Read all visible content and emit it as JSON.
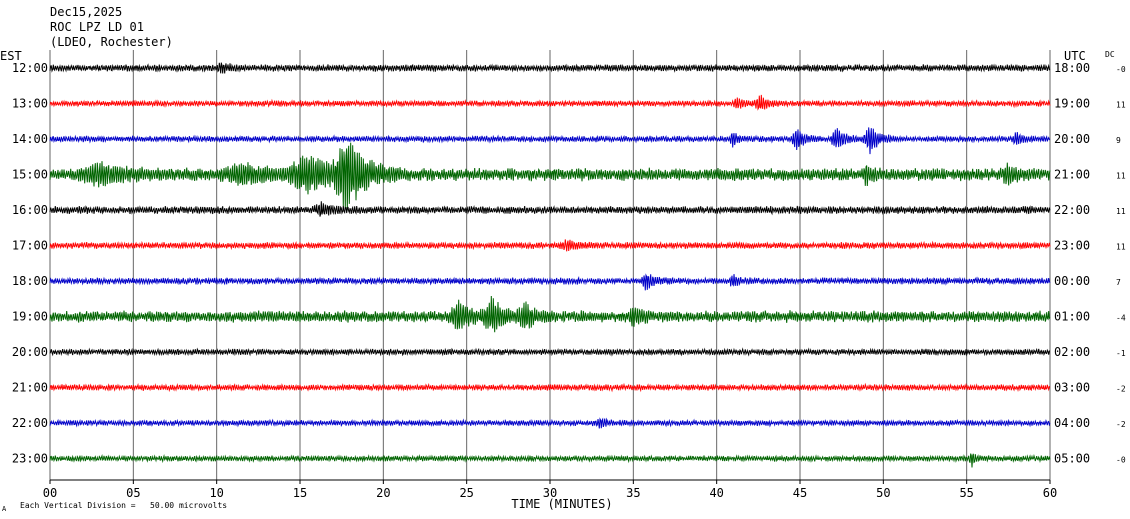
{
  "header": {
    "date": "Dec15,2025",
    "station": "ROC LPZ LD 01",
    "network": "(LDEO, Rochester)"
  },
  "left_tz": "EST",
  "right_tz": "UTC",
  "dc_label": "DC",
  "footer": {
    "xlabel": "TIME (MINUTES)",
    "scale_note": "Each Vertical Division =   50.00 microvolts",
    "corner_mark": "A"
  },
  "chart_data": {
    "type": "line",
    "title": "ROC LPZ LD 01",
    "xlabel": "TIME (MINUTES)",
    "ylabel": "",
    "xlim": [
      0,
      60
    ],
    "x_ticks": [
      "00",
      "05",
      "10",
      "15",
      "20",
      "25",
      "30",
      "35",
      "40",
      "45",
      "50",
      "55",
      "60"
    ],
    "grid": true,
    "trace_colors": [
      "#000000",
      "#ff0000",
      "#0000c8",
      "#006400"
    ],
    "rows": [
      {
        "est": "12:00",
        "utc": "18:00",
        "dc": "-0",
        "color": "#000000",
        "noise": 3.0,
        "events": [
          {
            "t": 10.3,
            "amp": 4,
            "w": 0.4
          }
        ]
      },
      {
        "est": "13:00",
        "utc": "19:00",
        "dc": "11",
        "color": "#ff0000",
        "noise": 2.5,
        "events": [
          {
            "t": 41.2,
            "amp": 5,
            "w": 0.3
          },
          {
            "t": 42.6,
            "amp": 7,
            "w": 0.4
          }
        ]
      },
      {
        "est": "14:00",
        "utc": "20:00",
        "dc": "9",
        "color": "#0000c8",
        "noise": 2.6,
        "events": [
          {
            "t": 41.0,
            "amp": 7,
            "w": 0.25
          },
          {
            "t": 44.8,
            "amp": 10,
            "w": 0.35
          },
          {
            "t": 47.2,
            "amp": 10,
            "w": 0.4
          },
          {
            "t": 49.2,
            "amp": 13,
            "w": 0.45
          },
          {
            "t": 58.0,
            "amp": 5,
            "w": 0.3
          }
        ]
      },
      {
        "est": "15:00",
        "utc": "21:00",
        "dc": "11",
        "color": "#006400",
        "noise": 5.5,
        "events": [
          {
            "t": 17.8,
            "amp": 30,
            "w": 0.9
          },
          {
            "t": 15.5,
            "amp": 16,
            "w": 1.4
          },
          {
            "t": 3.0,
            "amp": 8,
            "w": 1.5
          },
          {
            "t": 11.5,
            "amp": 8,
            "w": 1.5
          },
          {
            "t": 49.0,
            "amp": 7,
            "w": 0.3
          },
          {
            "t": 57.5,
            "amp": 7,
            "w": 0.5
          }
        ]
      },
      {
        "est": "16:00",
        "utc": "22:00",
        "dc": "11",
        "color": "#000000",
        "noise": 3.3,
        "events": [
          {
            "t": 16.3,
            "amp": 5,
            "w": 0.5
          }
        ]
      },
      {
        "est": "17:00",
        "utc": "23:00",
        "dc": "11",
        "color": "#ff0000",
        "noise": 2.8,
        "events": [
          {
            "t": 31.0,
            "amp": 4,
            "w": 0.5
          }
        ]
      },
      {
        "est": "18:00",
        "utc": "00:00",
        "dc": "7",
        "color": "#0000c8",
        "noise": 2.8,
        "events": [
          {
            "t": 35.8,
            "amp": 8,
            "w": 0.4
          },
          {
            "t": 41.0,
            "amp": 5,
            "w": 0.3
          }
        ]
      },
      {
        "est": "19:00",
        "utc": "01:00",
        "dc": "-4",
        "color": "#006400",
        "noise": 5.0,
        "events": [
          {
            "t": 24.5,
            "amp": 12,
            "w": 0.6
          },
          {
            "t": 26.5,
            "amp": 14,
            "w": 0.7
          },
          {
            "t": 28.5,
            "amp": 9,
            "w": 0.6
          },
          {
            "t": 35.0,
            "amp": 7,
            "w": 0.4
          }
        ]
      },
      {
        "est": "20:00",
        "utc": "02:00",
        "dc": "-1",
        "color": "#000000",
        "noise": 2.6,
        "events": []
      },
      {
        "est": "21:00",
        "utc": "03:00",
        "dc": "-2",
        "color": "#ff0000",
        "noise": 2.6,
        "events": []
      },
      {
        "est": "22:00",
        "utc": "04:00",
        "dc": "-2",
        "color": "#0000c8",
        "noise": 2.4,
        "events": [
          {
            "t": 33.0,
            "amp": 4,
            "w": 0.3
          }
        ]
      },
      {
        "est": "23:00",
        "utc": "05:00",
        "dc": "-0",
        "color": "#006400",
        "noise": 2.4,
        "events": [
          {
            "t": 55.3,
            "amp": 7,
            "w": 0.2
          }
        ]
      }
    ]
  }
}
